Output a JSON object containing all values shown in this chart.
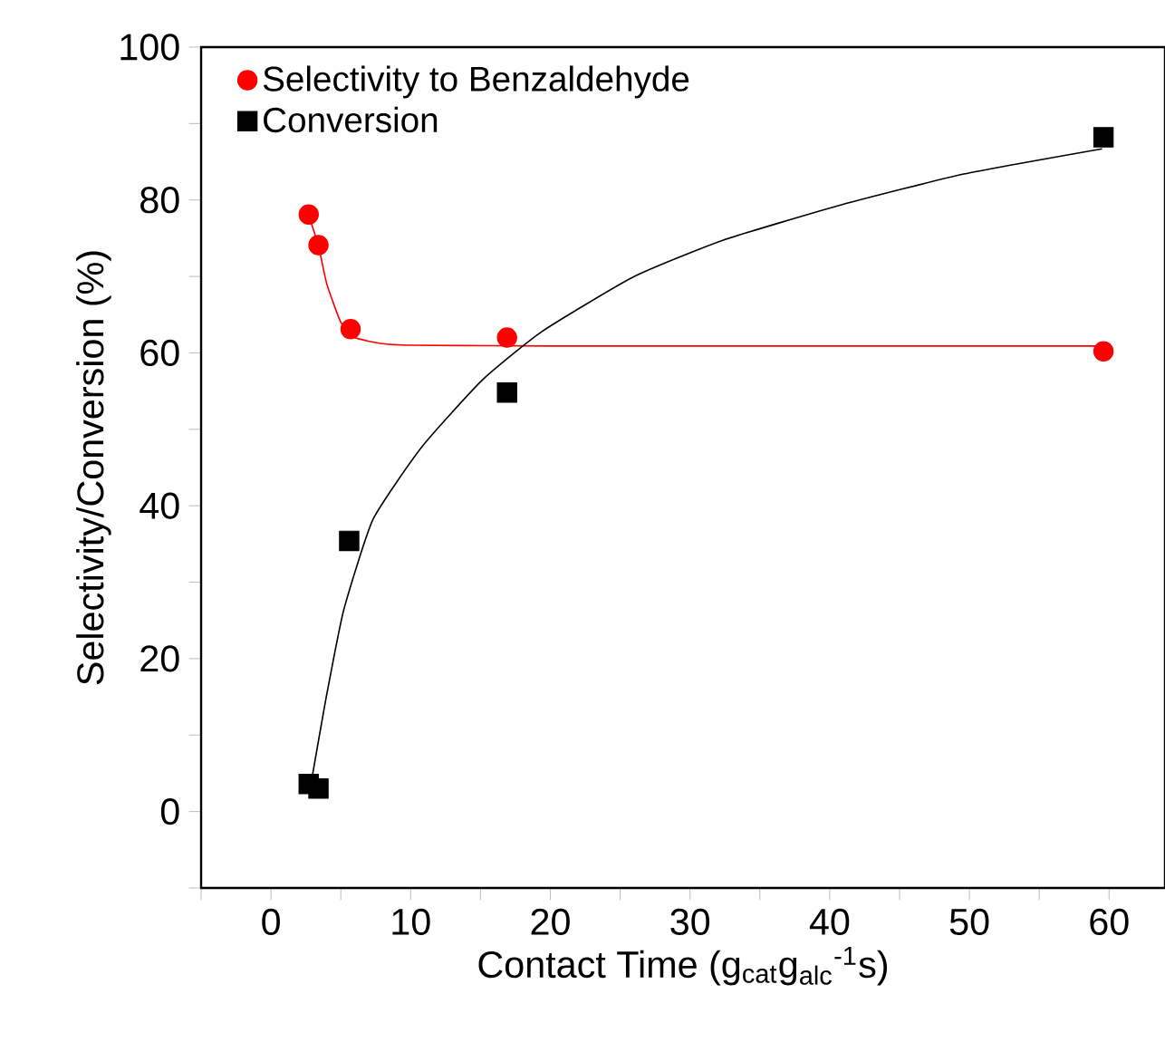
{
  "chart_data": {
    "type": "scatter",
    "xlabel": "Contact Time (g$_{cat}$g$_{alc}$$^{-1}$s)",
    "ylabel": "Selectivity/Conversion (%)",
    "series": [
      {
        "name": "Selectivity to Benzaldehyde",
        "color": "#ff0000",
        "marker": "circle",
        "x": [
          2.7,
          3.4,
          5.7,
          16.9,
          59.6
        ],
        "values": [
          78.1,
          74.1,
          63.1,
          62.0,
          60.2
        ]
      },
      {
        "name": "Conversion",
        "color": "#000000",
        "marker": "square",
        "x": [
          2.7,
          3.4,
          5.6,
          16.9,
          59.6
        ],
        "values": [
          3.6,
          3.0,
          35.4,
          54.8,
          88.2
        ]
      },
      {
        "type": "line",
        "color": "#ff0000",
        "marker": "none",
        "x": [
          2.7,
          3.4,
          4,
          5,
          6,
          8,
          10,
          20,
          40,
          60
        ],
        "values": [
          78,
          74,
          69,
          64,
          62,
          61.2,
          61,
          60.9,
          60.9,
          60.9
        ]
      },
      {
        "type": "line",
        "color": "#000000",
        "marker": "none",
        "x": [
          2.9,
          3.9,
          5.2,
          7.3,
          10.8,
          15.1,
          19.4,
          25.9,
          32.3,
          40.9,
          49.6,
          59.5
        ],
        "values": [
          4,
          14.4,
          26.3,
          38.2,
          47.7,
          56.4,
          62.8,
          69.9,
          74.7,
          79.4,
          83.4,
          86.7
        ]
      }
    ],
    "xlim": [
      -5,
      64
    ],
    "ylim": [
      -10,
      100
    ],
    "xticks": [
      {
        "value": -5,
        "label": null
      },
      0,
      {
        "value": 5,
        "label": null
      },
      10,
      {
        "value": 15,
        "label": null
      },
      20,
      {
        "value": 25,
        "label": null
      },
      30,
      {
        "value": 35,
        "label": null
      },
      40,
      {
        "value": 45,
        "label": null
      },
      50,
      {
        "value": 55,
        "label": null
      },
      60
    ],
    "yticks": [
      {
        "value": -10,
        "label": null
      },
      0,
      {
        "value": 10,
        "label": null
      },
      20,
      {
        "value": 30,
        "label": null
      },
      40,
      {
        "value": 50,
        "label": null
      },
      60,
      {
        "value": 70,
        "label": null
      },
      80,
      {
        "value": 90,
        "label": null
      },
      100
    ],
    "grid": false,
    "legend": "top left"
  }
}
